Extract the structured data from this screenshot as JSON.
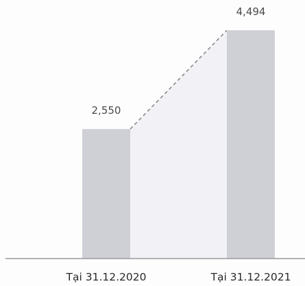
{
  "chart_data": {
    "type": "bar",
    "categories": [
      "Tại 31.12.2020",
      "Tại 31.12.2021"
    ],
    "values": [
      2550,
      4494
    ],
    "data_labels": [
      "2,550",
      "4,494"
    ],
    "title": "",
    "xlabel": "",
    "ylabel": "",
    "ylim": [
      0,
      4900
    ],
    "grid": false,
    "legend": "none",
    "connector": {
      "style": "dashed",
      "fill_between_bars": true
    },
    "colors": {
      "bar": "#cfcfd6",
      "connector_fill": "#f1f1f6",
      "connector_line": "#8a8a8a",
      "axis": "#999999"
    }
  }
}
